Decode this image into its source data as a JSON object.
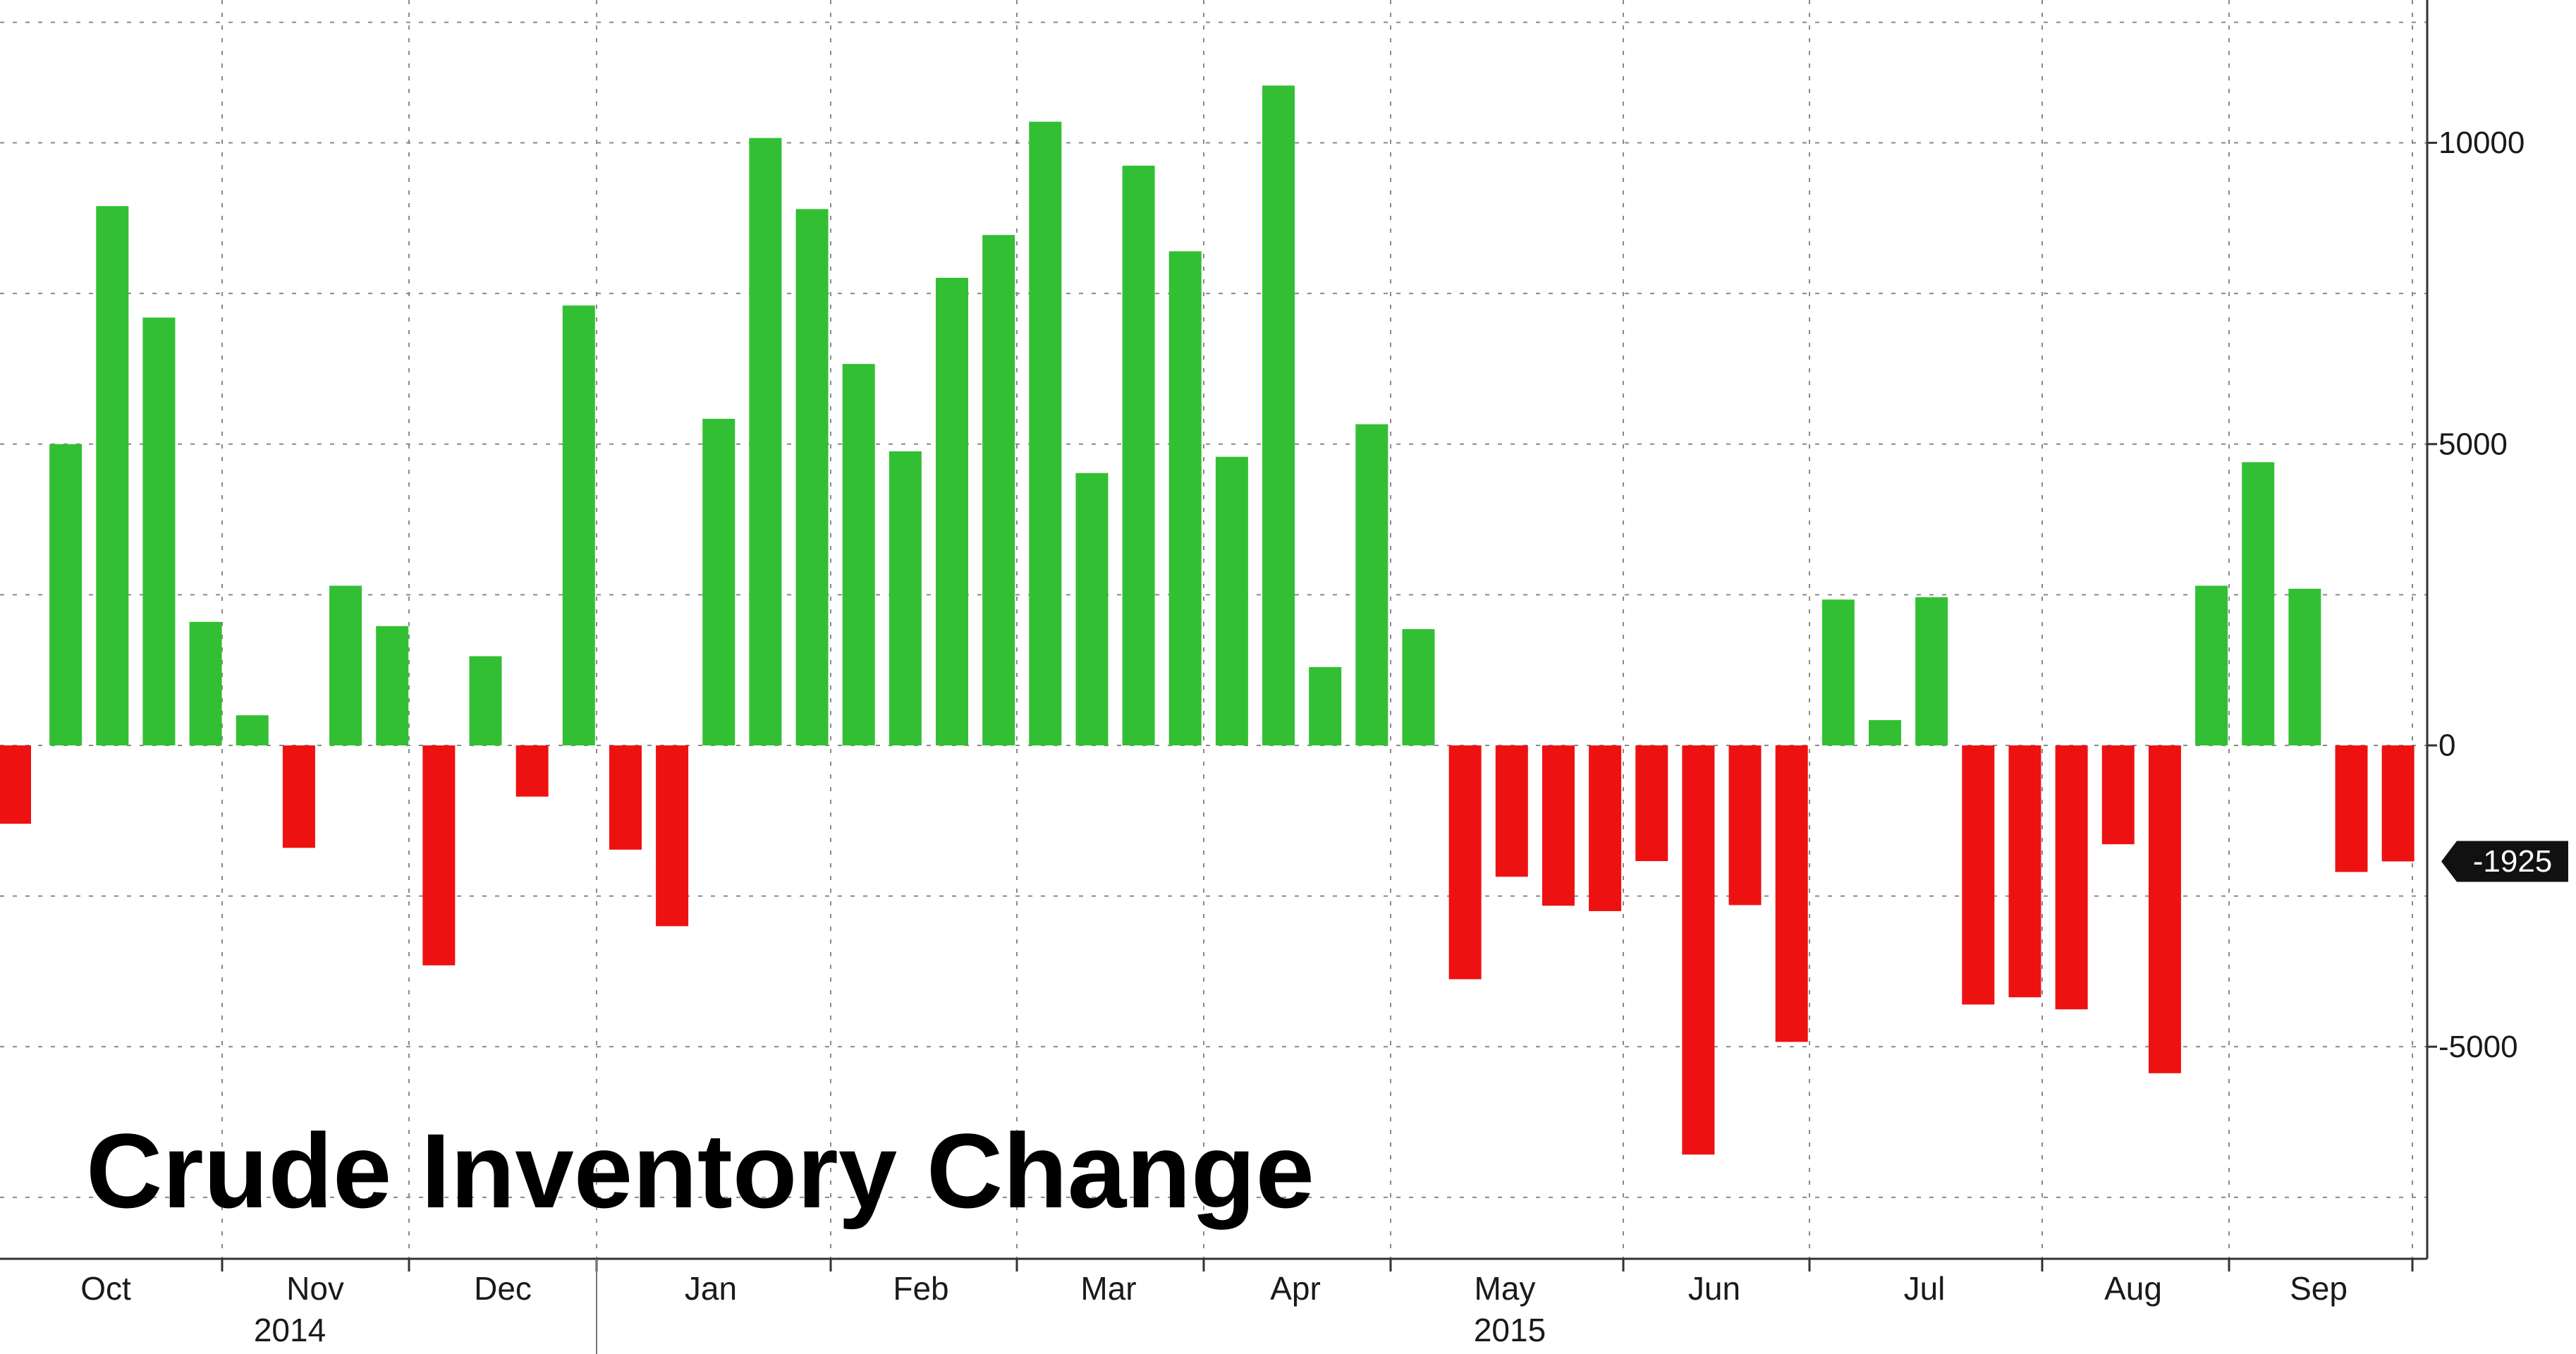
{
  "chart_data": {
    "type": "bar",
    "title": "Crude Inventory Change",
    "xlabel": "",
    "ylabel": "",
    "ylim": [
      -7500,
      12000
    ],
    "y_ticks": [
      10000,
      5000,
      0,
      -5000
    ],
    "y_tick_labels": [
      "10000",
      "5000",
      "0",
      "-5000"
    ],
    "grid": true,
    "y_axis_position": "right",
    "colors": {
      "positive": "#33bf33",
      "negative": "#ee1111",
      "grid": "#8a8a8a",
      "last_value_badge": "#111111"
    },
    "last_value_label": "-1925",
    "month_labels": [
      "Oct",
      "Nov",
      "Dec",
      "Jan",
      "Feb",
      "Mar",
      "Apr",
      "May",
      "Jun",
      "Jul",
      "Aug",
      "Sep"
    ],
    "year_labels": [
      "2014",
      "2015"
    ],
    "values": [
      -1300,
      5000,
      8950,
      7100,
      2050,
      500,
      -1700,
      2650,
      1980,
      -3650,
      1480,
      -850,
      7300,
      -1730,
      -3000,
      5420,
      10080,
      8900,
      6330,
      4880,
      7760,
      8470,
      10350,
      4520,
      9620,
      8200,
      4790,
      10950,
      1300,
      5330,
      1930,
      -3880,
      -2180,
      -2660,
      -2750,
      -1920,
      -6790,
      -2650,
      -4920,
      2420,
      420,
      2460,
      -4300,
      -4180,
      -4380,
      -1640,
      -5440,
      2650,
      4700,
      2600,
      -2100,
      -1925
    ]
  }
}
